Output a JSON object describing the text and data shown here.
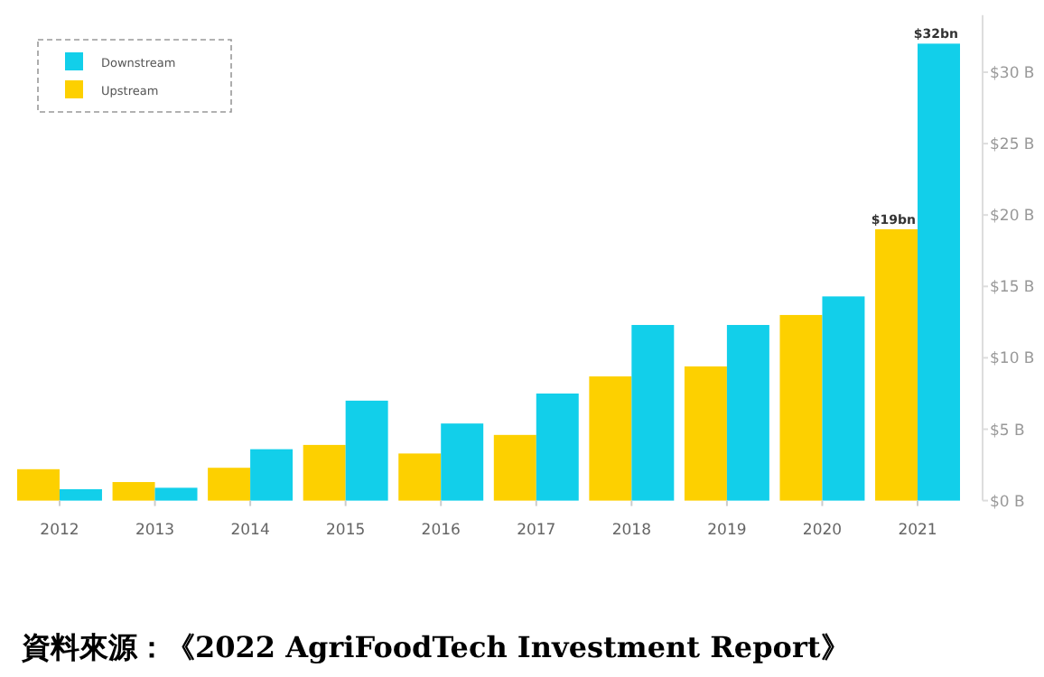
{
  "chart_data": {
    "type": "bar",
    "categories": [
      "2012",
      "2013",
      "2014",
      "2015",
      "2016",
      "2017",
      "2018",
      "2019",
      "2020",
      "2021"
    ],
    "series": [
      {
        "name": "Upstream",
        "color": "#fdd000",
        "values": [
          2.2,
          1.3,
          2.3,
          3.9,
          3.3,
          4.6,
          8.7,
          9.4,
          13.0,
          19
        ],
        "value_labels": [
          null,
          null,
          null,
          null,
          null,
          null,
          null,
          null,
          null,
          "$19bn"
        ]
      },
      {
        "name": "Downstream",
        "color": "#12cfea",
        "values": [
          0.8,
          0.9,
          3.6,
          7.0,
          5.4,
          7.5,
          12.3,
          12.3,
          14.3,
          32
        ],
        "value_labels": [
          null,
          null,
          null,
          null,
          null,
          null,
          null,
          null,
          null,
          "$32bn"
        ]
      }
    ],
    "ylim": [
      0,
      34
    ],
    "yticks": [
      {
        "value": 0,
        "label": "$0 B"
      },
      {
        "value": 5,
        "label": "$5 B"
      },
      {
        "value": 10,
        "label": "$10 B"
      },
      {
        "value": 15,
        "label": "$15 B"
      },
      {
        "value": 20,
        "label": "$20 B"
      },
      {
        "value": 25,
        "label": "$25 B"
      },
      {
        "value": 30,
        "label": "$30 B"
      }
    ],
    "legend": "top left",
    "annotations": [
      "資料來源：《2022 AgriFoodTech Investment Report》"
    ]
  }
}
